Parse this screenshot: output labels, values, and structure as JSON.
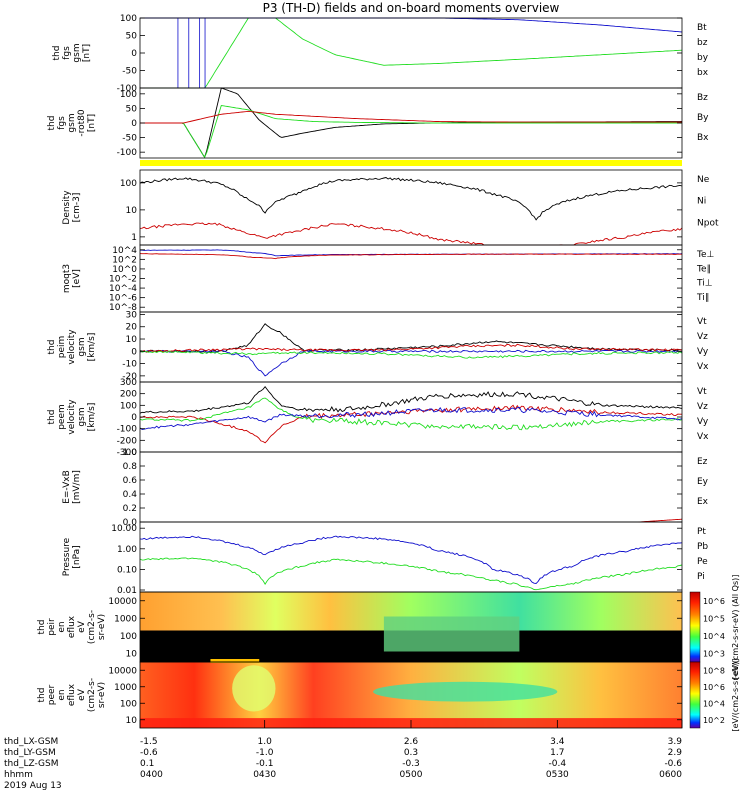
{
  "title": "P3 (TH-D) fields and on-board moments overview",
  "colors": {
    "black": "#000000",
    "red": "#cc0000",
    "green": "#22dd22",
    "blue": "#1010cc",
    "yellow": "#ffff00"
  },
  "chart_data": [
    {
      "type": "line",
      "ylabel": [
        "thd",
        "fgs",
        "gsm",
        "[nT]"
      ],
      "yticks": [
        "100",
        "50",
        "0",
        "-50",
        "-100"
      ],
      "ylim": [
        -100,
        100
      ],
      "legend": [
        {
          "name": "Bt",
          "color": "black"
        },
        {
          "name": "bz",
          "color": "red"
        },
        {
          "name": "by",
          "color": "green"
        },
        {
          "name": "bx",
          "color": "blue"
        }
      ],
      "series": [
        {
          "name": "by",
          "color": "green",
          "t": [
            0,
            0.12,
            0.2,
            0.25,
            0.3,
            0.36,
            0.45,
            0.55,
            0.7,
            0.85,
            1.0
          ],
          "v": [
            -100,
            -100,
            100,
            100,
            40,
            -5,
            -35,
            -30,
            -18,
            -5,
            8
          ]
        },
        {
          "name": "bx",
          "color": "blue",
          "t": [
            0,
            0.1,
            0.25,
            0.4,
            0.55,
            0.7,
            0.85,
            1.0
          ],
          "v": [
            100,
            100,
            100,
            100,
            100,
            95,
            80,
            60
          ]
        }
      ]
    },
    {
      "type": "line",
      "ylabel": [
        "thd",
        "fgs",
        "gsm",
        "-rot80",
        "[nT]"
      ],
      "yticks": [
        "100",
        "50",
        "0",
        "-50",
        "-100"
      ],
      "ylim": [
        -120,
        120
      ],
      "legend": [
        {
          "name": "Bz",
          "color": "black"
        },
        {
          "name": "By",
          "color": "green"
        },
        {
          "name": "Bx",
          "color": "red"
        }
      ],
      "series": [
        {
          "name": "Bz",
          "color": "black",
          "t": [
            0,
            0.08,
            0.12,
            0.15,
            0.18,
            0.22,
            0.26,
            0.3,
            0.36,
            0.45,
            0.6,
            1.0
          ],
          "v": [
            0,
            0,
            -120,
            120,
            100,
            10,
            -50,
            -35,
            -15,
            -3,
            2,
            5
          ]
        },
        {
          "name": "By",
          "color": "green",
          "t": [
            0,
            0.08,
            0.12,
            0.15,
            0.2,
            0.25,
            0.32,
            0.4,
            0.55,
            1.0
          ],
          "v": [
            0,
            0,
            -120,
            60,
            45,
            15,
            5,
            2,
            0,
            0
          ]
        },
        {
          "name": "Bx",
          "color": "red",
          "t": [
            0,
            0.08,
            0.15,
            0.2,
            0.25,
            0.3,
            0.4,
            0.55,
            0.7,
            1.0
          ],
          "v": [
            0,
            0,
            30,
            40,
            30,
            25,
            15,
            5,
            3,
            3
          ]
        }
      ]
    },
    {
      "type": "line",
      "ylabel": [
        "Density",
        "[cm-3]"
      ],
      "yticks": [
        "100",
        "10",
        "1"
      ],
      "ylog": true,
      "ylim": [
        0.5,
        300
      ],
      "legend": [
        {
          "name": "Ne",
          "color": "red"
        },
        {
          "name": "Ni",
          "color": "black"
        },
        {
          "name": "Npot",
          "color": "blue"
        }
      ],
      "series": [
        {
          "name": "Ni",
          "color": "black",
          "t": [
            0,
            0.08,
            0.14,
            0.19,
            0.23,
            0.29,
            0.36,
            0.45,
            0.55,
            0.65,
            0.73,
            0.8,
            0.9,
            1.0
          ],
          "v": [
            100,
            150,
            100,
            30,
            8,
            40,
            120,
            150,
            100,
            40,
            4,
            25,
            55,
            80
          ]
        },
        {
          "name": "Ne",
          "color": "red",
          "t": [
            0,
            0.08,
            0.14,
            0.19,
            0.23,
            0.29,
            0.36,
            0.45,
            0.55,
            0.65,
            0.73,
            0.8,
            0.9,
            1.0
          ],
          "v": [
            2,
            3,
            3,
            1.5,
            0.9,
            1.6,
            3,
            2,
            0.8,
            0.45,
            0.4,
            0.5,
            1,
            2
          ]
        }
      ]
    },
    {
      "type": "line",
      "ylabel": [
        "moqt3",
        "[eV]"
      ],
      "yticks": [
        "10^4",
        "10^2",
        "10^0",
        "10^-2",
        "10^-4",
        "10^-6",
        "10^-8"
      ],
      "ylog": true,
      "ylim": [
        1e-09,
        100000
      ],
      "legend": [
        {
          "name": "Te⊥",
          "color": "red"
        },
        {
          "name": "Te∥",
          "color": "black"
        },
        {
          "name": "Ti⊥",
          "color": "blue"
        },
        {
          "name": "Ti∥",
          "color": "green"
        }
      ],
      "series": [
        {
          "name": "Ti⊥",
          "color": "blue",
          "t": [
            0,
            0.15,
            0.2,
            0.25,
            0.35,
            0.6,
            1.0
          ],
          "v": [
            8000,
            9000,
            3000,
            600,
            1000,
            1200,
            1500
          ]
        },
        {
          "name": "Te⊥",
          "color": "red",
          "t": [
            0,
            0.15,
            0.2,
            0.25,
            0.35,
            0.6,
            1.0
          ],
          "v": [
            1500,
            900,
            300,
            150,
            800,
            1200,
            1200
          ]
        }
      ]
    },
    {
      "type": "line",
      "ylabel": [
        "thd",
        "peim",
        "velocity",
        "gsm",
        "[km/s]"
      ],
      "yticks": [
        "30",
        "20",
        "10",
        "0",
        "-10",
        "-20"
      ],
      "ylim": [
        -25,
        32
      ],
      "legend": [
        {
          "name": "Vt",
          "color": "black"
        },
        {
          "name": "Vz",
          "color": "red"
        },
        {
          "name": "Vy",
          "color": "green"
        },
        {
          "name": "Vx",
          "color": "blue"
        }
      ],
      "series": [
        {
          "name": "Vt",
          "color": "black",
          "t": [
            0,
            0.15,
            0.2,
            0.23,
            0.26,
            0.3,
            0.4,
            0.55,
            0.65,
            0.75,
            0.85,
            1.0
          ],
          "v": [
            0,
            0,
            5,
            22,
            15,
            1,
            1,
            4,
            8,
            5,
            2,
            1
          ]
        },
        {
          "name": "Vx",
          "color": "blue",
          "t": [
            0,
            0.15,
            0.2,
            0.23,
            0.26,
            0.3,
            1.0
          ],
          "v": [
            0,
            0,
            -5,
            -20,
            -10,
            0,
            0
          ]
        },
        {
          "name": "Vz",
          "color": "red",
          "t": [
            0,
            0.2,
            0.3,
            0.45,
            0.6,
            0.7,
            0.8,
            1.0
          ],
          "v": [
            0,
            2,
            1,
            1,
            4,
            5,
            2,
            1
          ]
        },
        {
          "name": "Vy",
          "color": "green",
          "t": [
            0,
            0.2,
            0.3,
            0.45,
            0.6,
            0.7,
            0.8,
            1.0
          ],
          "v": [
            0,
            -2,
            -1,
            -2,
            -5,
            -4,
            -2,
            -1
          ]
        }
      ]
    },
    {
      "type": "line",
      "ylabel": [
        "thd",
        "peem",
        "velocity",
        "gsm",
        "[km/s]"
      ],
      "yticks": [
        "300",
        "200",
        "100",
        "0",
        "-100",
        "-200",
        "-300"
      ],
      "ylim": [
        -300,
        300
      ],
      "legend": [
        {
          "name": "Vt",
          "color": "black"
        },
        {
          "name": "Vz",
          "color": "red"
        },
        {
          "name": "Vy",
          "color": "green"
        },
        {
          "name": "Vx",
          "color": "blue"
        }
      ],
      "series": [
        {
          "name": "Vt",
          "color": "black",
          "t": [
            0,
            0.1,
            0.2,
            0.23,
            0.26,
            0.3,
            0.4,
            0.55,
            0.7,
            0.85,
            1.0
          ],
          "v": [
            40,
            50,
            120,
            260,
            100,
            60,
            70,
            180,
            200,
            100,
            80
          ]
        },
        {
          "name": "Vz",
          "color": "red",
          "t": [
            0,
            0.1,
            0.2,
            0.23,
            0.26,
            0.3,
            0.4,
            0.55,
            0.7,
            0.85,
            1.0
          ],
          "v": [
            0,
            0,
            -120,
            -220,
            -80,
            0,
            20,
            60,
            80,
            40,
            20
          ]
        },
        {
          "name": "Vy",
          "color": "green",
          "t": [
            0,
            0.1,
            0.2,
            0.23,
            0.26,
            0.3,
            0.4,
            0.55,
            0.7,
            0.85,
            1.0
          ],
          "v": [
            -20,
            -30,
            80,
            160,
            60,
            -20,
            -40,
            -80,
            -90,
            -40,
            -20
          ]
        },
        {
          "name": "Vx",
          "color": "blue",
          "t": [
            0,
            0.1,
            0.2,
            0.23,
            0.26,
            0.3,
            0.4,
            0.55,
            0.7,
            0.85,
            1.0
          ],
          "v": [
            -100,
            -60,
            0,
            -40,
            20,
            10,
            20,
            60,
            60,
            20,
            -20
          ]
        }
      ]
    },
    {
      "type": "line",
      "ylabel": [
        "E=-VxB",
        "[mV/m]"
      ],
      "yticks": [
        "1.0",
        "0.8",
        "0.6",
        "0.4",
        "0.2",
        "0.0"
      ],
      "ylim": [
        0,
        1
      ],
      "legend": [
        {
          "name": "Ez",
          "color": "red"
        },
        {
          "name": "Ey",
          "color": "green"
        },
        {
          "name": "Ex",
          "color": "blue"
        }
      ],
      "series": [
        {
          "name": "Ez",
          "color": "red",
          "t": [
            0.92,
            0.96,
            1.0
          ],
          "v": [
            0.0,
            0.02,
            0.04
          ]
        }
      ]
    },
    {
      "type": "line",
      "ylabel": [
        "Pressure",
        "[nPa]"
      ],
      "yticks": [
        "10.00",
        "1.00",
        "0.10",
        "0.01"
      ],
      "ylog": true,
      "ylim": [
        0.008,
        20
      ],
      "legend": [
        {
          "name": "Pt",
          "color": "black"
        },
        {
          "name": "Pb",
          "color": "red"
        },
        {
          "name": "Pe",
          "color": "green"
        },
        {
          "name": "Pi",
          "color": "blue"
        }
      ],
      "series": [
        {
          "name": "Pi",
          "color": "blue",
          "t": [
            0,
            0.1,
            0.16,
            0.23,
            0.3,
            0.36,
            0.45,
            0.55,
            0.65,
            0.73,
            0.8,
            0.9,
            1.0
          ],
          "v": [
            3,
            4,
            2,
            0.5,
            2,
            4,
            3,
            0.8,
            0.1,
            0.02,
            0.15,
            0.8,
            2
          ]
        },
        {
          "name": "Pe",
          "color": "green",
          "t": [
            0,
            0.1,
            0.16,
            0.23,
            0.3,
            0.36,
            0.45,
            0.55,
            0.65,
            0.73,
            0.8,
            0.9,
            1.0
          ],
          "v": [
            0.3,
            0.35,
            0.2,
            0.02,
            0.15,
            0.3,
            0.2,
            0.08,
            0.03,
            0.01,
            0.02,
            0.06,
            0.15
          ]
        }
      ]
    },
    {
      "type": "heatmap",
      "ylabel": [
        "thd",
        "peir",
        "en",
        "eflux",
        "eV",
        "(cm2-s-",
        "sr-eV)"
      ],
      "yticks": [
        "10000",
        "1000",
        "100",
        "10"
      ],
      "colorbar_ticks": [
        "10^6",
        "10^5",
        "10^4",
        "10^3"
      ],
      "colorbar_label": "[eV/(cm2-s-sr-eV) (All Qs)]"
    },
    {
      "type": "heatmap",
      "ylabel": [
        "thd",
        "peer",
        "en",
        "eflux",
        "eV",
        "(cm2-s-",
        "sr-eV)"
      ],
      "yticks": [
        "10000",
        "1000",
        "100",
        "10"
      ],
      "colorbar_ticks": [
        "10^8",
        "10^6",
        "10^4",
        "10^2"
      ],
      "colorbar_label": "[eV/(cm2-s-sr-eV)]"
    }
  ],
  "xaxis": {
    "rows": [
      {
        "label": "thd_LX-GSM",
        "values": [
          "-1.5",
          "1.0",
          "2.6",
          "3.4",
          "3.9"
        ]
      },
      {
        "label": "thd_LY-GSM",
        "values": [
          "-0.6",
          "-1.0",
          "0.3",
          "1.7",
          "2.9"
        ]
      },
      {
        "label": "thd_LZ-GSM",
        "values": [
          "0.1",
          "-0.1",
          "-0.3",
          "-0.4",
          "-0.6"
        ]
      },
      {
        "label": "hhmm",
        "values": [
          "0400",
          "0430",
          "0500",
          "0530",
          "0600"
        ]
      }
    ],
    "date": "2019 Aug 13"
  }
}
